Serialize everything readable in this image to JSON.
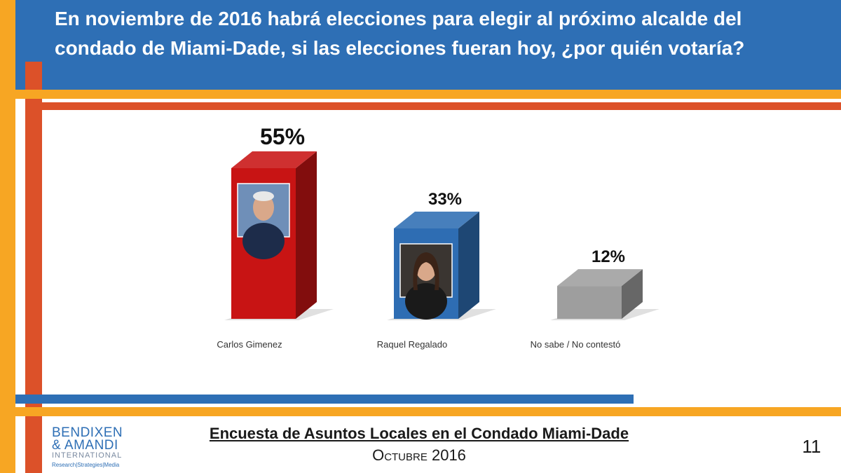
{
  "title": "En noviembre de 2016 habrá elecciones para elegir al próximo alcalde del condado de Miami-Dade, si las elecciones fueran hoy, ¿por quién votaría?",
  "chart_data": {
    "type": "bar",
    "categories": [
      "Carlos Gimenez",
      "Raquel Regalado",
      "No sabe / No contestó"
    ],
    "values": [
      55,
      33,
      12
    ],
    "value_labels": [
      "55%",
      "33%",
      "12%"
    ],
    "unit": "%",
    "colors": [
      "#c81414",
      "#2e6db3",
      "#9e9e9e"
    ],
    "category_images": [
      "portrait-photo",
      "portrait-photo",
      null
    ],
    "ylim": [
      0,
      55
    ],
    "grid": false,
    "legend": "none"
  },
  "footer": {
    "title": "Encuesta de Asuntos Locales en el Condado Miami-Dade",
    "subtitle": "Octubre 2016",
    "page_number": "11"
  },
  "logo": {
    "line1": "BENDIXEN",
    "line2": "& AMANDI",
    "line3": "INTERNATIONAL",
    "tagline": "Research|Strategies|Media"
  },
  "colors": {
    "header_blue": "#2e6fb5",
    "accent_orange": "#f7a623",
    "accent_red": "#dc5129"
  }
}
